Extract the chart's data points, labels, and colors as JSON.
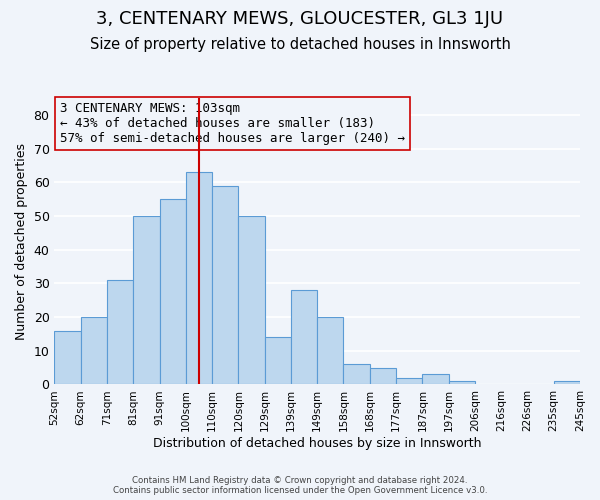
{
  "title": "3, CENTENARY MEWS, GLOUCESTER, GL3 1JU",
  "subtitle": "Size of property relative to detached houses in Innsworth",
  "xlabel": "Distribution of detached houses by size in Innsworth",
  "ylabel": "Number of detached properties",
  "footer_line1": "Contains HM Land Registry data © Crown copyright and database right 2024.",
  "footer_line2": "Contains public sector information licensed under the Open Government Licence v3.0.",
  "bin_labels": [
    "52sqm",
    "62sqm",
    "71sqm",
    "81sqm",
    "91sqm",
    "100sqm",
    "110sqm",
    "120sqm",
    "129sqm",
    "139sqm",
    "149sqm",
    "158sqm",
    "168sqm",
    "177sqm",
    "187sqm",
    "197sqm",
    "206sqm",
    "216sqm",
    "226sqm",
    "235sqm",
    "245sqm"
  ],
  "bar_values": [
    16,
    20,
    31,
    50,
    55,
    63,
    59,
    50,
    14,
    28,
    20,
    6,
    5,
    2,
    3,
    1,
    0,
    0,
    0,
    1
  ],
  "bar_color": "#bdd7ee",
  "bar_edge_color": "#5b9bd5",
  "background_color": "#f0f4fa",
  "grid_color": "#ffffff",
  "annotation_box_text": "3 CENTENARY MEWS: 103sqm\n← 43% of detached houses are smaller (183)\n57% of semi-detached houses are larger (240) →",
  "vline_x": 5.5,
  "vline_color": "#cc0000",
  "ylim": [
    0,
    85
  ],
  "yticks": [
    0,
    10,
    20,
    30,
    40,
    50,
    60,
    70,
    80
  ],
  "annotation_fontsize": 9.0,
  "title_fontsize": 13,
  "subtitle_fontsize": 10.5
}
